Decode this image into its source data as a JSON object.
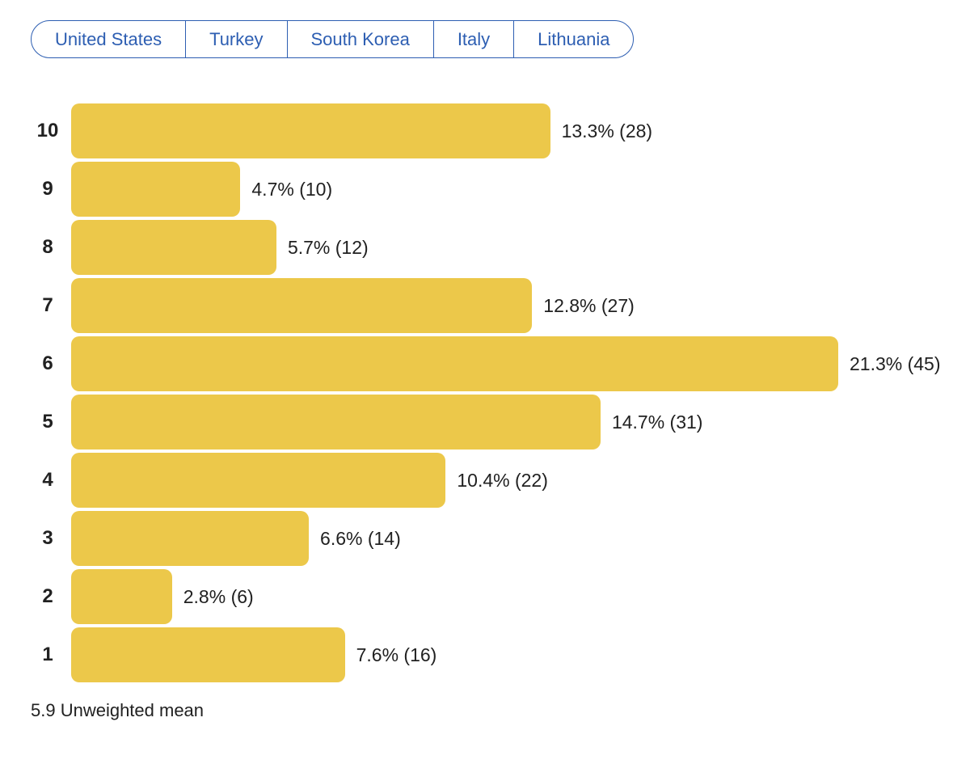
{
  "colors": {
    "bar": "#ecc84a",
    "accent_blue": "#2d5eb2",
    "text": "#212121"
  },
  "tabs": {
    "items": [
      {
        "label": "United States"
      },
      {
        "label": "Turkey"
      },
      {
        "label": "South Korea"
      },
      {
        "label": "Italy"
      },
      {
        "label": "Lithuania"
      }
    ]
  },
  "chart_data": {
    "type": "bar",
    "orientation": "horizontal",
    "categories": [
      "10",
      "9",
      "8",
      "7",
      "6",
      "5",
      "4",
      "3",
      "2",
      "1"
    ],
    "series": [
      {
        "name": "share_pct",
        "values": [
          13.3,
          4.7,
          5.7,
          12.8,
          21.3,
          14.7,
          10.4,
          6.6,
          2.8,
          7.6
        ]
      },
      {
        "name": "count",
        "values": [
          28,
          10,
          12,
          27,
          45,
          31,
          22,
          14,
          6,
          16
        ]
      }
    ],
    "value_labels": [
      "13.3% (28)",
      "4.7% (10)",
      "5.7% (12)",
      "12.8% (27)",
      "21.3% (45)",
      "14.7% (31)",
      "10.4% (22)",
      "6.6% (14)",
      "2.8% (6)",
      "7.6% (16)"
    ],
    "xlim": [
      0,
      21.3
    ],
    "grid": false,
    "legend": false,
    "title": "",
    "xlabel": "",
    "ylabel": ""
  },
  "footer": {
    "mean_note": "5.9 Unweighted mean"
  }
}
